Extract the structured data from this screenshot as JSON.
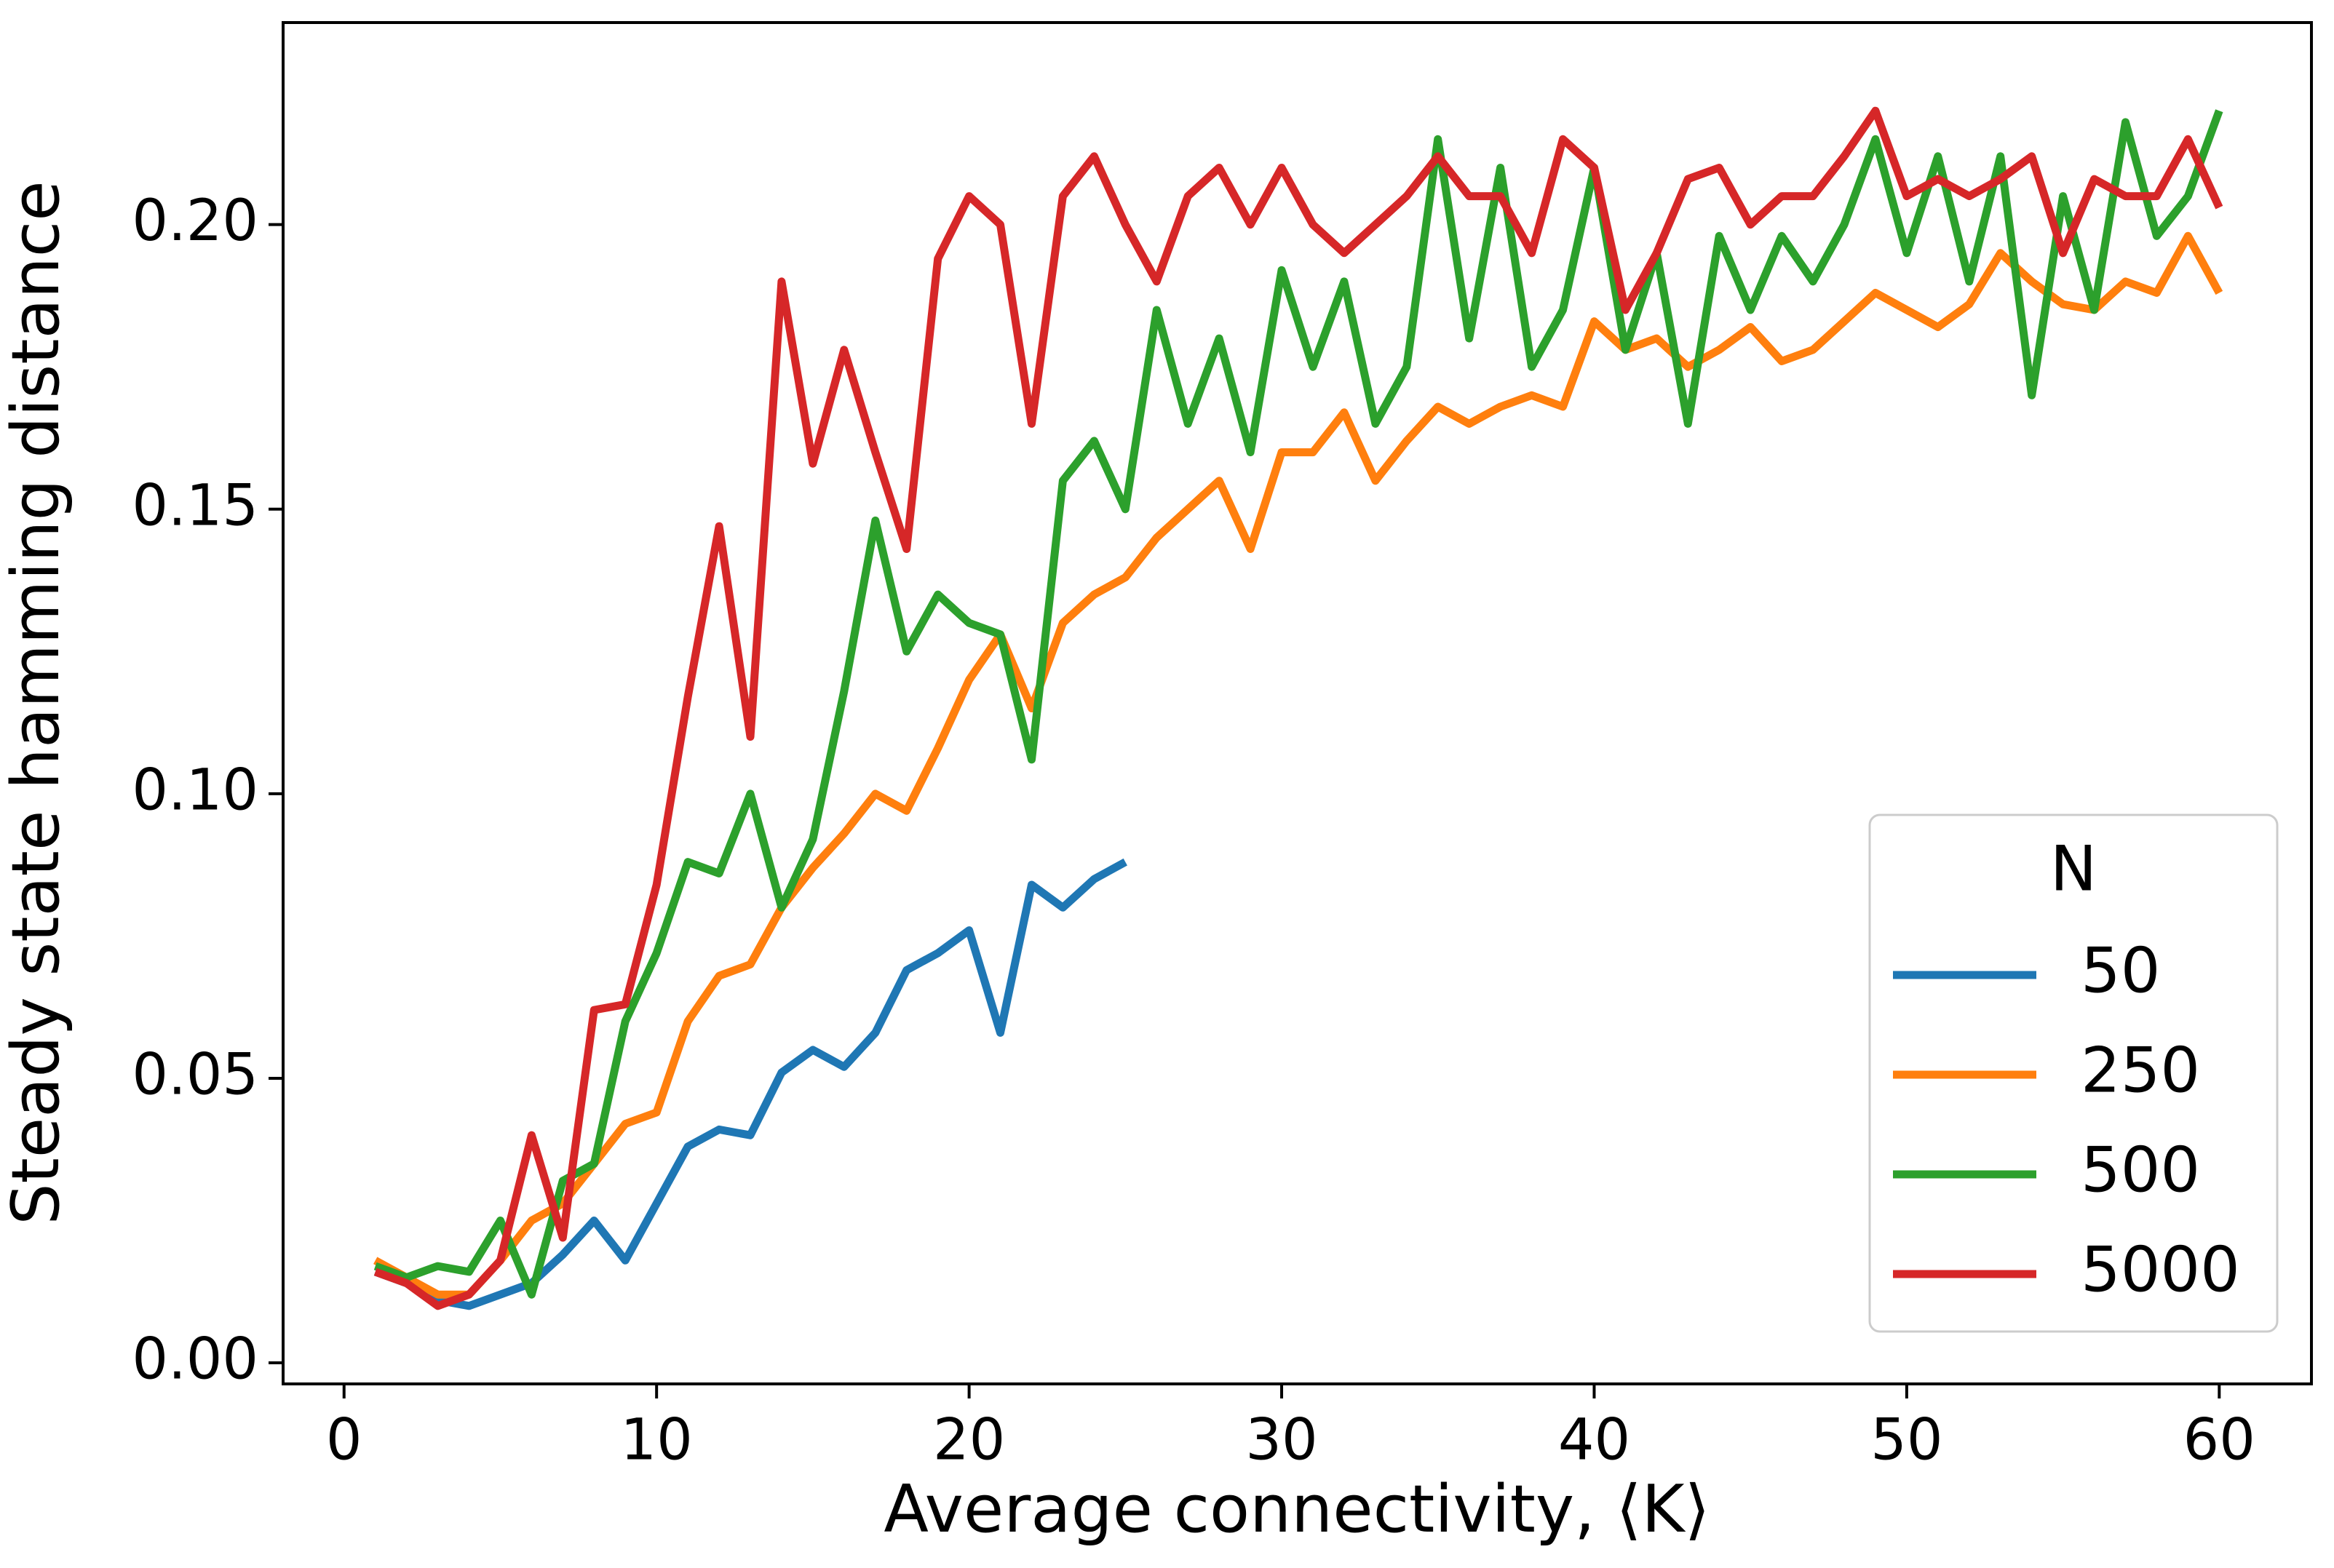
{
  "chart_data": {
    "type": "line",
    "x_label": "Average connectivity, ⟨K⟩",
    "y_label": "Steady state hamming distance",
    "legend_title": "N",
    "legend": "lower right",
    "x": [
      1,
      2,
      3,
      4,
      5,
      6,
      7,
      8,
      9,
      10,
      11,
      12,
      13,
      14,
      15,
      16,
      17,
      18,
      19,
      20,
      21,
      22,
      23,
      24,
      25,
      26,
      27,
      28,
      29,
      30,
      31,
      32,
      33,
      34,
      35,
      36,
      37,
      38,
      39,
      40,
      41,
      42,
      43,
      44,
      45,
      46,
      47,
      48,
      49,
      50,
      51,
      52,
      53,
      54,
      55,
      56,
      57,
      58,
      59,
      60
    ],
    "series": [
      {
        "name": "50",
        "color": "#1f77b4",
        "values": [
          0.016,
          0.014,
          0.011,
          0.01,
          0.012,
          0.014,
          0.019,
          0.025,
          0.018,
          0.028,
          0.038,
          0.041,
          0.04,
          0.051,
          0.055,
          0.052,
          0.058,
          0.069,
          0.072,
          0.076,
          0.058,
          0.084,
          0.08,
          0.085,
          0.088,
          null,
          null,
          null,
          null,
          null,
          null,
          null,
          null,
          null,
          null,
          null,
          null,
          null,
          null,
          null,
          null,
          null,
          null,
          null,
          null,
          null,
          null,
          null,
          null,
          null,
          null,
          null,
          null,
          null,
          null,
          null,
          null,
          null,
          null,
          null
        ]
      },
      {
        "name": "250",
        "color": "#ff7f0e",
        "values": [
          0.018,
          0.015,
          0.012,
          0.012,
          0.018,
          0.025,
          0.028,
          0.035,
          0.042,
          0.044,
          0.06,
          0.068,
          0.07,
          0.08,
          0.087,
          0.093,
          0.1,
          0.097,
          0.108,
          0.12,
          0.128,
          0.115,
          0.13,
          0.135,
          0.138,
          0.145,
          0.15,
          0.155,
          0.143,
          0.16,
          0.16,
          0.167,
          0.155,
          0.162,
          0.168,
          0.165,
          0.168,
          0.17,
          0.168,
          0.183,
          0.178,
          0.18,
          0.175,
          0.178,
          0.182,
          0.176,
          0.178,
          0.183,
          0.188,
          0.185,
          0.182,
          0.186,
          0.195,
          0.19,
          0.186,
          0.185,
          0.19,
          0.188,
          0.198,
          0.188
        ]
      },
      {
        "name": "500",
        "color": "#2ca02c",
        "values": [
          0.017,
          0.015,
          0.017,
          0.016,
          0.025,
          0.012,
          0.032,
          0.035,
          0.06,
          0.072,
          0.088,
          0.086,
          0.1,
          0.08,
          0.092,
          0.118,
          0.148,
          0.125,
          0.135,
          0.13,
          0.128,
          0.106,
          0.155,
          0.162,
          0.15,
          0.185,
          0.165,
          0.18,
          0.16,
          0.192,
          0.175,
          0.19,
          0.165,
          0.175,
          0.215,
          0.18,
          0.21,
          0.175,
          0.185,
          0.21,
          0.178,
          0.195,
          0.165,
          0.198,
          0.185,
          0.198,
          0.19,
          0.2,
          0.215,
          0.195,
          0.212,
          0.19,
          0.212,
          0.17,
          0.205,
          0.185,
          0.218,
          0.198,
          0.205,
          0.22
        ]
      },
      {
        "name": "5000",
        "color": "#d62728",
        "values": [
          0.016,
          0.014,
          0.01,
          0.012,
          0.018,
          0.04,
          0.022,
          0.062,
          0.063,
          0.084,
          0.117,
          0.147,
          0.11,
          0.19,
          0.158,
          0.178,
          0.16,
          0.143,
          0.194,
          0.205,
          0.2,
          0.165,
          0.205,
          0.212,
          0.2,
          0.19,
          0.205,
          0.21,
          0.2,
          0.21,
          0.2,
          0.195,
          0.2,
          0.205,
          0.212,
          0.205,
          0.205,
          0.195,
          0.215,
          0.21,
          0.185,
          0.195,
          0.208,
          0.21,
          0.2,
          0.205,
          0.205,
          0.212,
          0.22,
          0.205,
          0.208,
          0.205,
          0.208,
          0.212,
          0.195,
          0.208,
          0.205,
          0.205,
          0.215,
          0.203
        ]
      }
    ],
    "xlim": [
      -1.95,
      62.95
    ],
    "ylim": [
      -0.0037,
      0.2355
    ],
    "xticks": [
      0,
      10,
      20,
      30,
      40,
      50,
      60
    ],
    "yticks": [
      {
        "value": 0,
        "label": "0.00"
      },
      0.05,
      {
        "value": 0.1,
        "label": "0.10"
      },
      0.15,
      {
        "value": 0.2,
        "label": "0.20"
      }
    ]
  }
}
